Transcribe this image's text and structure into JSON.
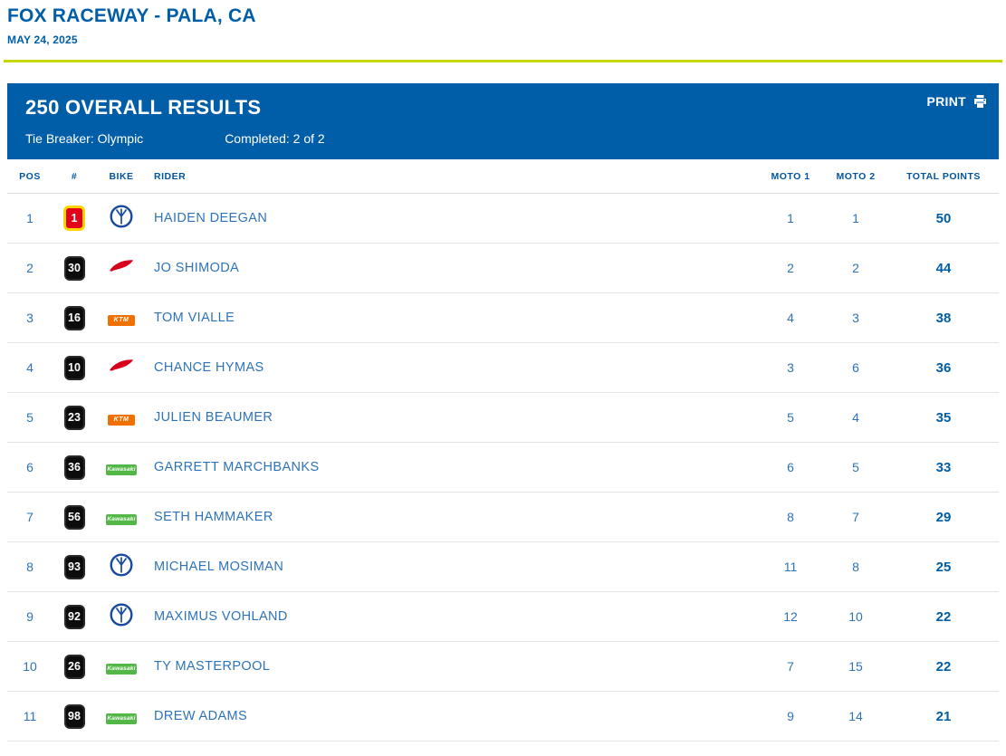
{
  "page": {
    "title": "FOX RACEWAY - PALA, CA",
    "date": "MAY 24, 2025"
  },
  "panel": {
    "title": "250 OVERALL RESULTS",
    "print_label": "PRINT",
    "tie_breaker": "Tie Breaker: Olympic",
    "completed": "Completed: 2 of 2"
  },
  "colors": {
    "accent_blue": "#005da8",
    "value_blue": "#2e73b8",
    "lime_divider": "#c6d800",
    "leader_plate_bg": "#e3001b",
    "leader_plate_border": "#ffd500",
    "honda_red": "#d6001c",
    "ktm_orange": "#f07000",
    "kawasaki_green": "#53b748",
    "yamaha_blue": "#17499c"
  },
  "brand_labels": {
    "ktm": "KTM",
    "kawasaki": "Kawasaki"
  },
  "table": {
    "headers": [
      "POS",
      "#",
      "BIKE",
      "RIDER",
      "MOTO 1",
      "MOTO 2",
      "TOTAL POINTS"
    ],
    "rows": [
      {
        "pos": "1",
        "number": "1",
        "plate": "leader",
        "brand": "yamaha",
        "rider": "HAIDEN DEEGAN",
        "moto1": "1",
        "moto2": "1",
        "total": "50"
      },
      {
        "pos": "2",
        "number": "30",
        "plate": "standard",
        "brand": "honda",
        "rider": "JO SHIMODA",
        "moto1": "2",
        "moto2": "2",
        "total": "44"
      },
      {
        "pos": "3",
        "number": "16",
        "plate": "standard",
        "brand": "ktm",
        "rider": "TOM VIALLE",
        "moto1": "4",
        "moto2": "3",
        "total": "38"
      },
      {
        "pos": "4",
        "number": "10",
        "plate": "standard",
        "brand": "honda",
        "rider": "CHANCE HYMAS",
        "moto1": "3",
        "moto2": "6",
        "total": "36"
      },
      {
        "pos": "5",
        "number": "23",
        "plate": "standard",
        "brand": "ktm",
        "rider": "JULIEN BEAUMER",
        "moto1": "5",
        "moto2": "4",
        "total": "35"
      },
      {
        "pos": "6",
        "number": "36",
        "plate": "standard",
        "brand": "kawasaki",
        "rider": "GARRETT MARCHBANKS",
        "moto1": "6",
        "moto2": "5",
        "total": "33"
      },
      {
        "pos": "7",
        "number": "56",
        "plate": "standard",
        "brand": "kawasaki",
        "rider": "SETH HAMMAKER",
        "moto1": "8",
        "moto2": "7",
        "total": "29"
      },
      {
        "pos": "8",
        "number": "93",
        "plate": "standard",
        "brand": "yamaha",
        "rider": "MICHAEL MOSIMAN",
        "moto1": "11",
        "moto2": "8",
        "total": "25"
      },
      {
        "pos": "9",
        "number": "92",
        "plate": "standard",
        "brand": "yamaha",
        "rider": "MAXIMUS VOHLAND",
        "moto1": "12",
        "moto2": "10",
        "total": "22"
      },
      {
        "pos": "10",
        "number": "26",
        "plate": "standard",
        "brand": "kawasaki",
        "rider": "TY MASTERPOOL",
        "moto1": "7",
        "moto2": "15",
        "total": "22"
      },
      {
        "pos": "11",
        "number": "98",
        "plate": "standard",
        "brand": "kawasaki",
        "rider": "DREW ADAMS",
        "moto1": "9",
        "moto2": "14",
        "total": "21"
      }
    ]
  }
}
